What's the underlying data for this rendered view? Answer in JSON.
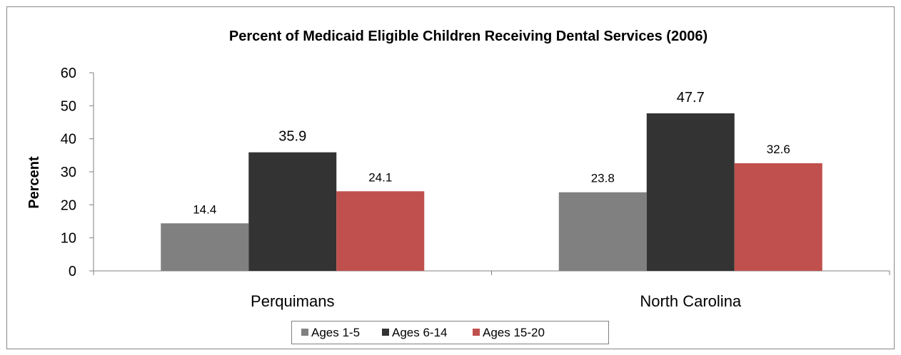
{
  "chart_data": {
    "type": "bar",
    "title": "Percent of Medicaid Eligible Children Receiving Dental Services (2006)",
    "xlabel": "",
    "ylabel": "Percent",
    "categories": [
      "Perquimans",
      "North Carolina"
    ],
    "series": [
      {
        "name": "Ages 1-5",
        "values": [
          14.4,
          23.8
        ],
        "color": "#808080"
      },
      {
        "name": "Ages 6-14",
        "values": [
          35.9,
          47.7
        ],
        "color": "#333333"
      },
      {
        "name": "Ages 15-20",
        "values": [
          24.1,
          32.6
        ],
        "color": "#c0504d"
      }
    ],
    "ylim": [
      0,
      60
    ],
    "yticks": [
      "0",
      "10",
      "20",
      "30",
      "40",
      "50",
      "60"
    ],
    "grid": false,
    "legend": "bottom",
    "data_labels": true
  }
}
